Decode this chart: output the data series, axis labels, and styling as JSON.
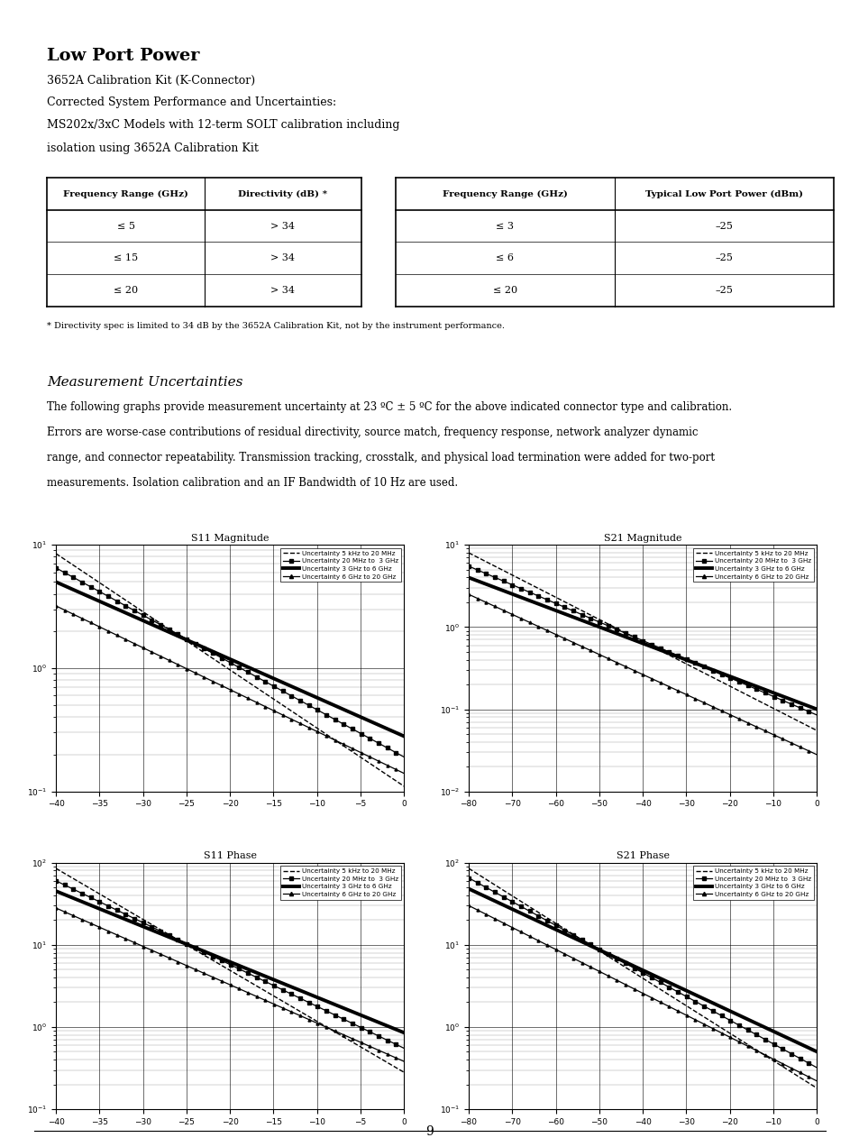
{
  "title": "Low Port Power",
  "subtitle1": "3652A Calibration Kit (K-Connector)",
  "subtitle2_lines": [
    "Corrected System Performance and Uncertainties:",
    "MS202x/3xC Models with 12-term SOLT calibration including",
    "isolation using 3652A Calibration Kit"
  ],
  "table1_headers": [
    "Frequency Range (GHz)",
    "Directivity (dB) *"
  ],
  "table1_rows": [
    [
      "≤ 5",
      "> 34"
    ],
    [
      "≤ 15",
      "> 34"
    ],
    [
      "≤ 20",
      "> 34"
    ]
  ],
  "table2_headers": [
    "Frequency Range (GHz)",
    "Typical Low Port Power (dBm)"
  ],
  "table2_rows": [
    [
      "≤ 3",
      "–25"
    ],
    [
      "≤ 6",
      "–25"
    ],
    [
      "≤ 20",
      "–25"
    ]
  ],
  "footnote": "* Directivity spec is limited to 34 dB by the 3652A Calibration Kit, not by the instrument performance.",
  "section_title": "Measurement Uncertainties",
  "body_lines": [
    "The following graphs provide measurement uncertainty at 23 ºC ± 5 ºC for the above indicated connector type and calibration.",
    "Errors are worse-case contributions of residual directivity, source match, frequency response, network analyzer dynamic",
    "range, and connector repeatability. Transmission tracking, crosstalk, and physical load termination were added for two-port",
    "measurements. Isolation calibration and an IF Bandwidth of 10 Hz are used."
  ],
  "graph_titles": [
    "S11 Magnitude",
    "S21 Magnitude",
    "S11 Phase",
    "S21 Phase"
  ],
  "legend_labels": [
    "Uncertainty 5 kHz to 20 MHz",
    "Uncertainty 20 MHz to  3 GHz",
    "Uncertainty 3 GHz to 6 GHz",
    "Uncertainty 6 GHz to 20 GHz"
  ],
  "s11_mag_xlim": [
    -40,
    0
  ],
  "s11_mag_ylim": [
    0.1,
    10
  ],
  "s21_mag_xlim": [
    -80,
    0
  ],
  "s21_mag_ylim": [
    0.01,
    10
  ],
  "s11_phase_xlim": [
    -40,
    0
  ],
  "s11_phase_ylim": [
    0.1,
    100
  ],
  "s21_phase_xlim": [
    -80,
    0
  ],
  "s21_phase_ylim": [
    0.1,
    100
  ],
  "page_number": "9"
}
